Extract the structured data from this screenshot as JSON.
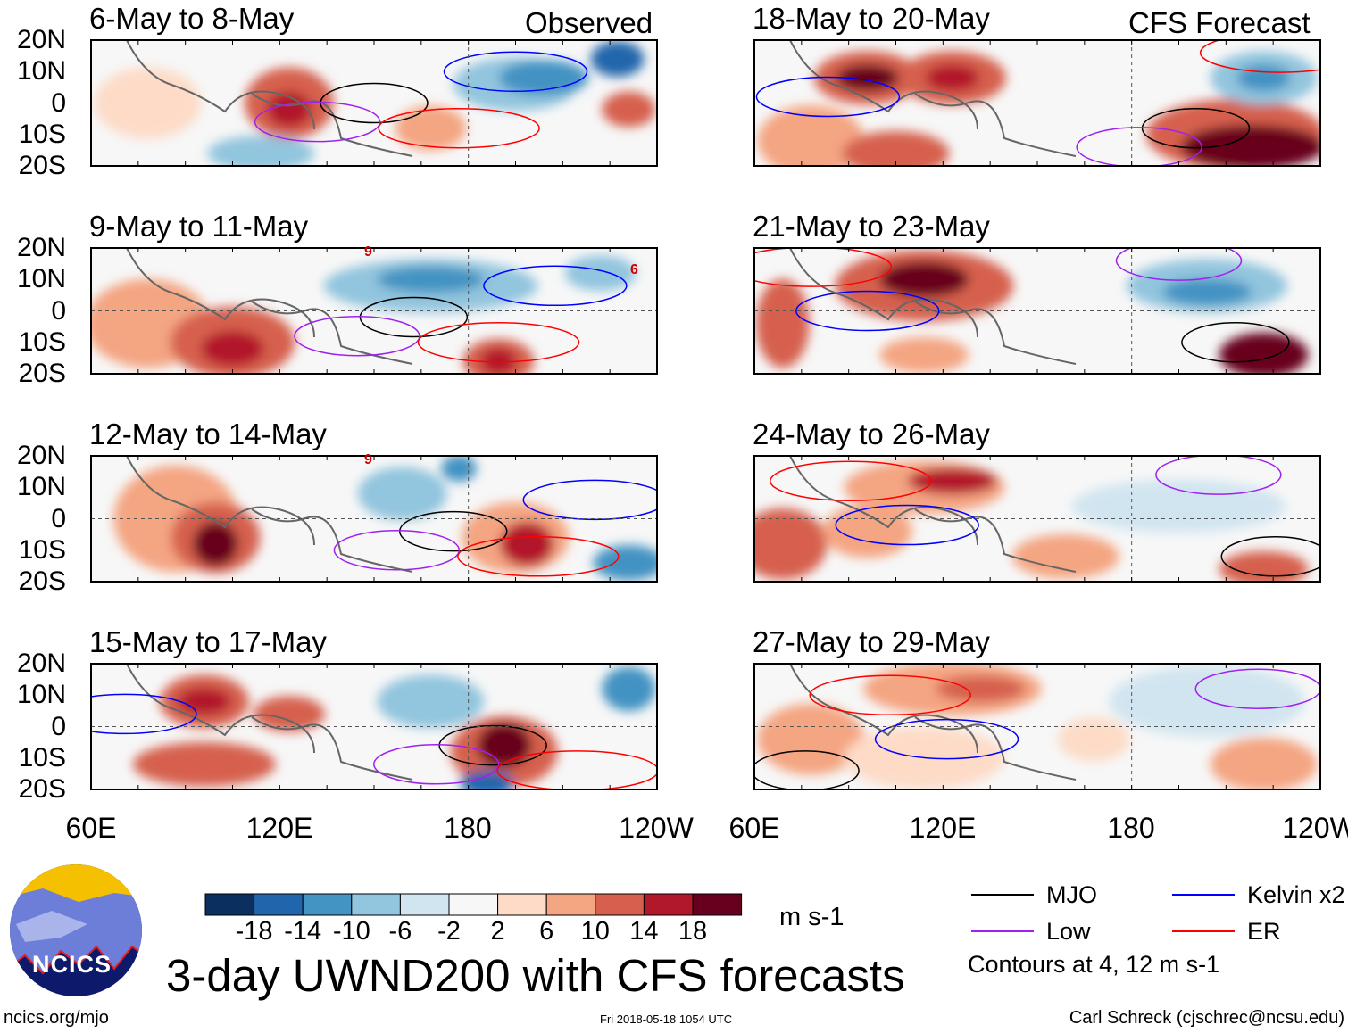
{
  "left_label": "Observed",
  "right_label": "CFS Forecast",
  "panels_left": [
    "6-May to 8-May",
    "9-May to 11-May",
    "12-May to 14-May",
    "15-May to 17-May"
  ],
  "panels_right": [
    "18-May to 20-May",
    "21-May to 23-May",
    "24-May to 26-May",
    "27-May to 29-May"
  ],
  "lat_labels": [
    "20N",
    "10N",
    "0",
    "10S",
    "20S"
  ],
  "lon_labels": [
    "60E",
    "120E",
    "180",
    "120W"
  ],
  "storm_markers": [
    "9",
    "6",
    "9"
  ],
  "colorbar": {
    "colors": [
      "#0b2f5e",
      "#2166ac",
      "#4393c3",
      "#92c5de",
      "#d1e5f0",
      "#f7f7f7",
      "#fddbc7",
      "#f4a582",
      "#d6604d",
      "#b2182b",
      "#67001f"
    ],
    "ticks": [
      "-18",
      "-14",
      "-10",
      "-6",
      "-2",
      "2",
      "6",
      "10",
      "14",
      "18"
    ],
    "units": "m s-1"
  },
  "legend": {
    "items": [
      {
        "label": "MJO",
        "color": "#000000"
      },
      {
        "label": "Kelvin x2",
        "color": "#0000ff"
      },
      {
        "label": "Low",
        "color": "#a020f0"
      },
      {
        "label": "ER",
        "color": "#ff0000"
      }
    ],
    "note": "Contours at 4, 12 m s-1"
  },
  "title": "3-day UWND200 with CFS forecasts",
  "logo_text": "NCICS",
  "footer": {
    "url": "ncics.org/mjo",
    "timestamp": "Fri 2018-05-18 1054 UTC",
    "author": "Carl Schreck (cjschrec@ncsu.edu)"
  }
}
